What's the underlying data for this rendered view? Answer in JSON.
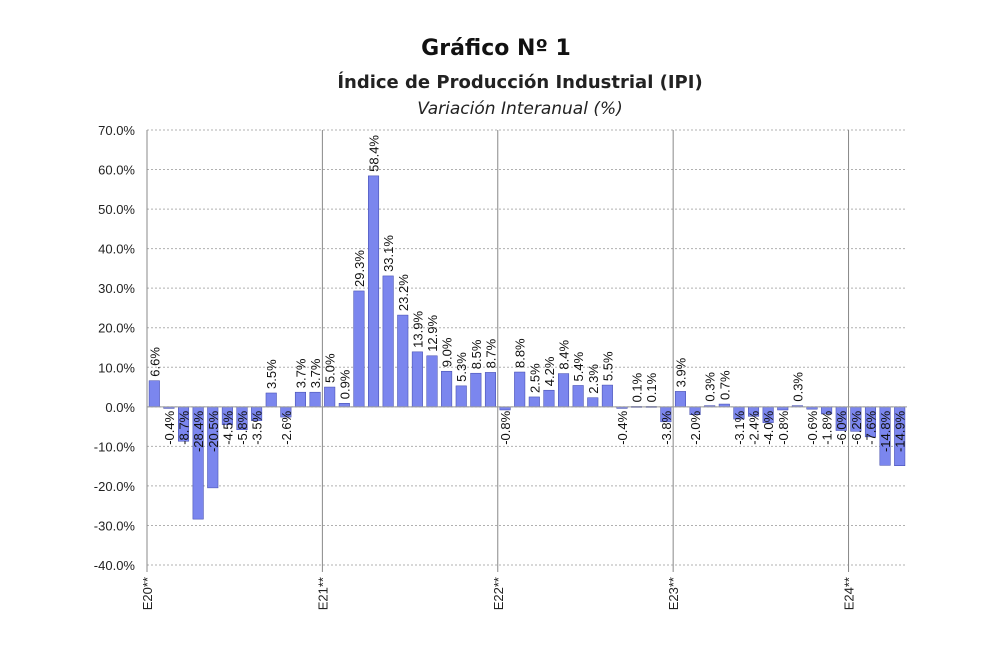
{
  "header": {
    "title": "Gráfico Nº 1",
    "subtitle": "Índice de Producción Industrial (IPI)",
    "subtitle2": "Variación Interanual (%)"
  },
  "colors": {
    "bar": "#7b86ee",
    "bar_stroke": "#3b44a8",
    "grid": "#b0b0b0"
  },
  "chart_data": {
    "type": "bar",
    "ylim": [
      -40,
      70
    ],
    "yticks": [
      -40,
      -30,
      -20,
      -10,
      0,
      10,
      20,
      30,
      40,
      50,
      60,
      70
    ],
    "ytick_labels": [
      "-40.0%",
      "-30.0%",
      "-20.0%",
      "-10.0%",
      "0.0%",
      "10.0%",
      "20.0%",
      "30.0%",
      "40.0%",
      "50.0%",
      "60.0%",
      "70.0%"
    ],
    "grid": true,
    "xtick_labels": [
      {
        "label": "E20**",
        "index": 0
      },
      {
        "label": "E21**",
        "index": 12
      },
      {
        "label": "E22**",
        "index": 24
      },
      {
        "label": "E23**",
        "index": 36
      },
      {
        "label": "E24**",
        "index": 48
      }
    ],
    "values": [
      6.6,
      -0.4,
      -8.7,
      -28.4,
      -20.5,
      -4.5,
      -5.8,
      -3.5,
      3.5,
      -2.6,
      3.7,
      3.7,
      5.0,
      0.9,
      29.3,
      58.4,
      33.1,
      23.2,
      13.9,
      12.9,
      9.0,
      5.3,
      8.5,
      8.7,
      -0.8,
      8.8,
      2.5,
      4.2,
      8.4,
      5.4,
      2.3,
      5.5,
      -0.4,
      0.1,
      0.1,
      -3.8,
      3.9,
      -2.0,
      0.3,
      0.7,
      -3.1,
      -2.4,
      -4.0,
      -0.8,
      0.3,
      -0.6,
      -1.8,
      -6.0,
      -6.2,
      -7.6,
      -14.8,
      -14.9
    ],
    "labels": [
      "6.6%",
      "-0.4%",
      "-8.7%",
      "-28.4%",
      "-20.5%",
      "-4.5%",
      "-5.8%",
      "-3.5%",
      "3.5%",
      "-2.6%",
      "3.7%",
      "3.7%",
      "5.0%",
      "0.9%",
      "29.3%",
      "58.4%",
      "33.1%",
      "23.2%",
      "13.9%",
      "12.9%",
      "9.0%",
      "5.3%",
      "8.5%",
      "8.7%",
      "-0.8%",
      "8.8%",
      "2.5%",
      "4.2%",
      "8.4%",
      "5.4%",
      "2.3%",
      "5.5%",
      "-0.4%",
      "0.1%",
      "0.1%",
      "-3.8%",
      "3.9%",
      "-2.0%",
      "0.3%",
      "0.7%",
      "-3.1%",
      "-2.4%",
      "-4.0%",
      "-0.8%",
      "0.3%",
      "-0.6%",
      "-1.8%",
      "-6.0%",
      "-6.2%",
      "-7.6%",
      "-14.8%",
      "-14.9%"
    ]
  }
}
